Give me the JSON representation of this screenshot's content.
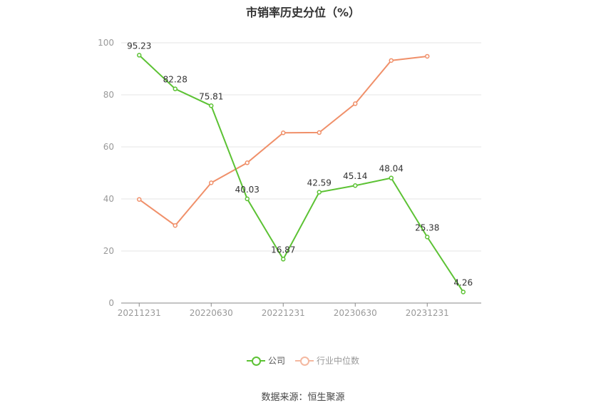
{
  "chart_data": {
    "type": "line",
    "title": "市销率历史分位（%）",
    "x": [
      "20211231",
      "20220331",
      "20220630",
      "20220930",
      "20221231",
      "20230331",
      "20230630",
      "20230930",
      "20231231",
      "20240331"
    ],
    "x_tick_labels": [
      "20211231",
      "20220630",
      "20221231",
      "20230630",
      "20231231"
    ],
    "ylim": [
      0,
      100
    ],
    "y_ticks": [
      0,
      20,
      40,
      60,
      80,
      100
    ],
    "grid": true,
    "legend_position": "bottom-center",
    "series": [
      {
        "name": "公司",
        "color": "#5cc234",
        "values": [
          95.23,
          82.28,
          75.81,
          40.03,
          16.87,
          42.59,
          45.14,
          48.04,
          25.38,
          4.26
        ],
        "data_labels": [
          "95.23",
          "82.28",
          "75.81",
          "40.03",
          "16.87",
          "42.59",
          "45.14",
          "48.04",
          "25.38",
          "4.26"
        ]
      },
      {
        "name": "行业中位数",
        "color": "#f0906a",
        "values": [
          39.8,
          29.8,
          46.2,
          53.9,
          65.4,
          65.5,
          76.6,
          93.2,
          94.8,
          null
        ]
      }
    ]
  },
  "footer": {
    "source": "数据来源：恒生聚源"
  }
}
